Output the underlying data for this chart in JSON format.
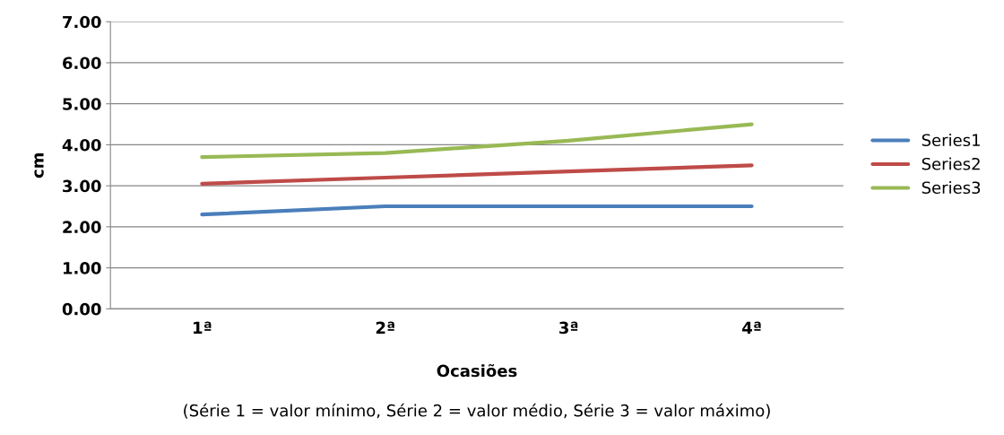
{
  "chart_data": {
    "type": "line",
    "xlabel": "Ocasiões",
    "ylabel": "cm",
    "annotations": [
      "(Série 1 = valor mínimo, Série 2 = valor médio, Série 3 = valor máximo)"
    ],
    "categories": [
      "1ª",
      "2ª",
      "3ª",
      "4ª"
    ],
    "series": [
      {
        "name": "Series1",
        "color": "#4a7ebb",
        "values": [
          2.3,
          2.5,
          2.5,
          2.5
        ]
      },
      {
        "name": "Series2",
        "color": "#be4b48",
        "values": [
          3.05,
          3.2,
          3.35,
          3.5
        ]
      },
      {
        "name": "Series3",
        "color": "#98b954",
        "values": [
          3.7,
          3.8,
          4.1,
          4.5
        ]
      }
    ],
    "ylim": [
      0,
      7
    ],
    "yticks": [
      {
        "value": 0,
        "label": "0.00"
      },
      {
        "value": 1,
        "label": "1.00"
      },
      {
        "value": 2,
        "label": "2.00"
      },
      {
        "value": 3,
        "label": "3.00"
      },
      {
        "value": 4,
        "label": "4.00"
      },
      {
        "value": 5,
        "label": "5.00"
      },
      {
        "value": 6,
        "label": "6.00"
      },
      {
        "value": 7,
        "label": "7.00"
      }
    ],
    "grid": "y",
    "legend": "right",
    "marker": "none",
    "line_style": "solid"
  }
}
